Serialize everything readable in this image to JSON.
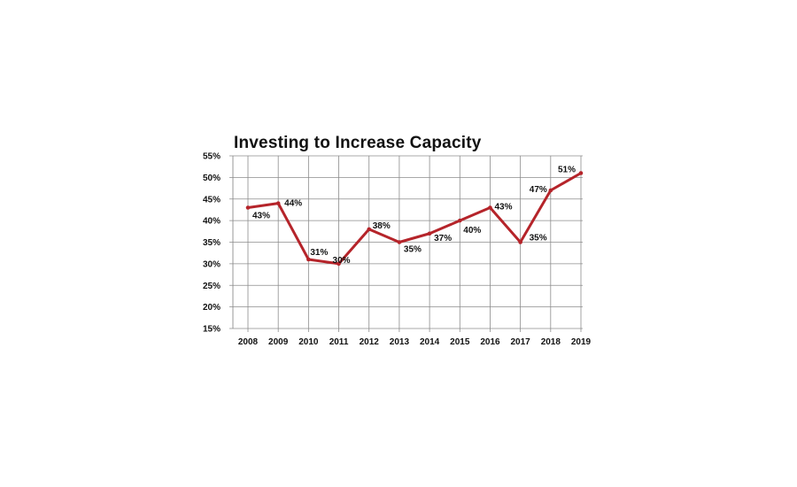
{
  "chart_data": {
    "type": "line",
    "title": "Investing to Increase Capacity",
    "xlabel": "",
    "ylabel": "",
    "categories": [
      "2008",
      "2009",
      "2010",
      "2011",
      "2012",
      "2013",
      "2014",
      "2015",
      "2016",
      "2017",
      "2018",
      "2019"
    ],
    "values": [
      43,
      44,
      31,
      30,
      38,
      35,
      37,
      40,
      43,
      35,
      47,
      51
    ],
    "data_labels": [
      "43%",
      "44%",
      "31%",
      "30%",
      "38%",
      "35%",
      "37%",
      "40%",
      "43%",
      "35%",
      "47%",
      "51%"
    ],
    "yticks": [
      "15%",
      "20%",
      "25%",
      "30%",
      "35%",
      "40%",
      "45%",
      "50%",
      "55%"
    ],
    "ylim": [
      15,
      55
    ],
    "grid": true,
    "legend": "none",
    "colors": {
      "line": "#b5242a",
      "grid": "#8c8c8c",
      "text": "#111111"
    }
  }
}
